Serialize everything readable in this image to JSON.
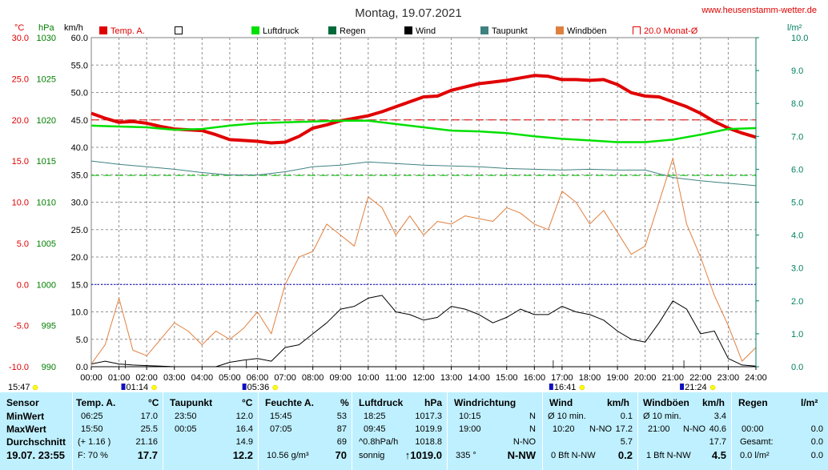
{
  "header": {
    "title": "Montag, 19.07.2021",
    "url": "www.heusenstamm-wetter.de",
    "unit_celsius": "°C",
    "unit_hpa": "hPa",
    "unit_kmh": "km/h",
    "unit_lm2": "l/m²"
  },
  "legend": [
    {
      "label": "Temp. A.",
      "color": "#e00000",
      "style": "filled"
    },
    {
      "label": "",
      "color": "#000000",
      "style": "outline"
    },
    {
      "label": "Luftdruck",
      "color": "#00e000",
      "style": "filled"
    },
    {
      "label": "Regen",
      "color": "#006a3a",
      "style": "filled"
    },
    {
      "label": "Wind",
      "color": "#000000",
      "style": "filled"
    },
    {
      "label": "Taupunkt",
      "color": "#3f8080",
      "style": "filled"
    },
    {
      "label": "Windböen",
      "color": "#e08040",
      "style": "filled"
    },
    {
      "label": "20.0 Monat-Ø",
      "color": "#e00000",
      "style": "bracket"
    }
  ],
  "time_markers": [
    {
      "label": "15:47",
      "hour": -1
    },
    {
      "label": "01:14",
      "hour": 1.23
    },
    {
      "label": "05:36",
      "hour": 5.6
    },
    {
      "label": "16:41",
      "hour": 16.68
    },
    {
      "label": "21:24",
      "hour": 21.4
    }
  ],
  "chart_data": {
    "type": "line",
    "title": "Montag, 19.07.2021",
    "x_ticks": [
      "00:00",
      "01:00",
      "02:00",
      "03:00",
      "04:00",
      "05:00",
      "06:00",
      "07:00",
      "08:00",
      "09:00",
      "10:00",
      "11:00",
      "12:00",
      "13:00",
      "14:00",
      "15:00",
      "16:00",
      "17:00",
      "18:00",
      "19:00",
      "20:00",
      "21:00",
      "22:00",
      "23:00",
      "24:00"
    ],
    "axes": {
      "celsius": {
        "min": -10,
        "max": 30,
        "ticks": [
          "-10.0",
          "-5.0",
          "0.0",
          "5.0",
          "10.0",
          "15.0",
          "20.0",
          "25.0",
          "30.0"
        ]
      },
      "hpa": {
        "min": 990,
        "max": 1030,
        "ticks": [
          "990",
          "995",
          "1000",
          "1005",
          "1010",
          "1015",
          "1020",
          "1025",
          "1030"
        ]
      },
      "kmh": {
        "min": 0,
        "max": 60,
        "ticks": [
          "0.0",
          "5.0",
          "10.0",
          "15.0",
          "20.0",
          "25.0",
          "30.0",
          "35.0",
          "40.0",
          "45.0",
          "50.0",
          "55.0",
          "60.0"
        ]
      },
      "lm2": {
        "min": 0,
        "max": 10,
        "ticks": [
          "0.0",
          "1.0",
          "2.0",
          "3.0",
          "4.0",
          "5.0",
          "6.0",
          "7.0",
          "8.0",
          "9.0",
          "10.0"
        ]
      }
    },
    "grid": true,
    "reference_lines": [
      {
        "name": "20.0 Monat-Ø",
        "axis": "celsius",
        "value": 20.0,
        "color": "#e00000"
      },
      {
        "axis": "celsius",
        "value": 0.0,
        "color": "#0000e0"
      },
      {
        "axis": "hpa",
        "value": 1013.25,
        "color": "#00c000"
      }
    ],
    "series": [
      {
        "name": "Temp. A.",
        "axis": "celsius",
        "color": "#e00000",
        "x": [
          0,
          0.5,
          1,
          1.5,
          2,
          2.5,
          3,
          3.5,
          4,
          4.5,
          5,
          5.5,
          6,
          6.5,
          7,
          7.5,
          8,
          8.5,
          9,
          9.5,
          10,
          10.5,
          11,
          11.5,
          12,
          12.5,
          13,
          13.5,
          14,
          14.5,
          15,
          15.5,
          16,
          16.5,
          17,
          17.5,
          18,
          18.5,
          19,
          19.5,
          20,
          20.5,
          21,
          21.5,
          22,
          22.5,
          23,
          23.5,
          24
        ],
        "y": [
          20.8,
          20.2,
          19.7,
          19.8,
          19.6,
          19.2,
          18.9,
          18.8,
          18.7,
          18.2,
          17.6,
          17.5,
          17.4,
          17.2,
          17.3,
          18.0,
          19.0,
          19.4,
          19.9,
          20.2,
          20.5,
          21.0,
          21.6,
          22.2,
          22.8,
          22.9,
          23.6,
          24.0,
          24.4,
          24.6,
          24.8,
          25.1,
          25.4,
          25.3,
          24.9,
          24.9,
          24.8,
          24.9,
          24.3,
          23.3,
          22.9,
          22.8,
          22.2,
          21.6,
          20.8,
          19.8,
          19.0,
          18.4,
          17.9
        ]
      },
      {
        "name": "Luftdruck",
        "axis": "hpa",
        "color": "#00e000",
        "x": [
          0,
          1,
          2,
          3,
          4,
          5,
          6,
          7,
          8,
          9,
          10,
          11,
          12,
          13,
          14,
          15,
          16,
          17,
          18,
          19,
          20,
          21,
          22,
          23,
          24
        ],
        "y": [
          1019.3,
          1019.2,
          1019.1,
          1018.8,
          1018.9,
          1019.3,
          1019.6,
          1019.7,
          1019.8,
          1019.9,
          1019.9,
          1019.5,
          1019.1,
          1018.7,
          1018.6,
          1018.4,
          1018.0,
          1017.7,
          1017.5,
          1017.3,
          1017.3,
          1017.6,
          1018.2,
          1018.9,
          1019.0
        ]
      },
      {
        "name": "Taupunkt",
        "axis": "celsius",
        "color": "#3f8080",
        "x": [
          0,
          1,
          2,
          3,
          4,
          5,
          6,
          7,
          8,
          9,
          10,
          11,
          12,
          13,
          14,
          15,
          16,
          17,
          18,
          19,
          20,
          21,
          22,
          23,
          24
        ],
        "y": [
          15.0,
          14.6,
          14.3,
          14.0,
          13.6,
          13.3,
          13.3,
          13.7,
          14.3,
          14.5,
          14.9,
          14.7,
          14.5,
          14.4,
          14.3,
          14.1,
          14.0,
          13.9,
          14.0,
          13.9,
          13.9,
          13.0,
          12.6,
          12.3,
          12.0
        ]
      },
      {
        "name": "Wind",
        "axis": "kmh",
        "color": "#000000",
        "x": [
          0,
          0.5,
          1,
          1.5,
          2,
          2.5,
          3,
          3.5,
          4,
          4.5,
          5,
          5.5,
          6,
          6.5,
          7,
          7.5,
          8,
          8.5,
          9,
          9.5,
          10,
          10.5,
          11,
          11.5,
          12,
          12.5,
          13,
          13.5,
          14,
          14.5,
          15,
          15.5,
          16,
          16.5,
          17,
          17.5,
          18,
          18.5,
          19,
          19.5,
          20,
          20.5,
          21,
          21.5,
          22,
          22.5,
          23,
          23.5,
          24
        ],
        "y": [
          0.5,
          1.0,
          0.5,
          0.3,
          0.2,
          0.1,
          0.0,
          0.0,
          0.0,
          0.0,
          0.8,
          1.2,
          1.5,
          1.0,
          3.5,
          4.0,
          6.0,
          8.0,
          10.5,
          11.0,
          12.5,
          13.0,
          10.0,
          9.5,
          8.5,
          9.0,
          11.0,
          10.5,
          9.5,
          8.0,
          9.0,
          10.5,
          9.5,
          9.5,
          11.0,
          10.0,
          9.5,
          8.5,
          6.5,
          5.0,
          4.5,
          8.0,
          12.0,
          10.5,
          6.0,
          6.5,
          1.5,
          0.3,
          0.1
        ]
      },
      {
        "name": "Windböen",
        "axis": "kmh",
        "color": "#e08040",
        "x": [
          0,
          0.5,
          1,
          1.5,
          2,
          2.5,
          3,
          3.5,
          4,
          4.5,
          5,
          5.5,
          6,
          6.5,
          7,
          7.5,
          8,
          8.5,
          9,
          9.5,
          10,
          10.5,
          11,
          11.5,
          12,
          12.5,
          13,
          13.5,
          14,
          14.5,
          15,
          15.5,
          16,
          16.5,
          17,
          17.5,
          18,
          18.5,
          19,
          19.5,
          20,
          20.5,
          21,
          21.5,
          22,
          22.5,
          23,
          23.5,
          24
        ],
        "y": [
          0.5,
          4.0,
          12.5,
          3.0,
          2.0,
          5.0,
          8.0,
          6.5,
          4.0,
          6.5,
          5.0,
          7.0,
          10.0,
          6.0,
          15.0,
          20.0,
          21.0,
          26.0,
          24.0,
          22.0,
          31.0,
          29.0,
          24.0,
          27.5,
          24.0,
          26.5,
          26.0,
          27.5,
          27.0,
          26.5,
          29.0,
          28.0,
          26.0,
          25.0,
          32.0,
          30.0,
          26.0,
          28.5,
          24.5,
          20.5,
          22.0,
          30.0,
          38.0,
          26.0,
          20.0,
          13.0,
          7.5,
          1.0,
          3.5
        ]
      }
    ]
  },
  "panel": {
    "sensor": {
      "header": "Sensor",
      "rows": [
        "MinWert",
        "MaxWert",
        "Durchschnitt"
      ],
      "footer": "19.07. 23:55"
    },
    "temp": {
      "header": "Temp. A.",
      "unit": "°C",
      "min_time": "06:25",
      "min_val": "17.0",
      "max_time": "15:50",
      "max_val": "25.5",
      "avg_note": "(+ 1.16 )",
      "avg_val": "21.16",
      "footer_note": "F: 70 %",
      "current": "17.7"
    },
    "taupunkt": {
      "header": "Taupunkt",
      "unit": "°C",
      "min_time": "23:50",
      "min_val": "12.0",
      "max_time": "00:05",
      "max_val": "16.4",
      "avg_val": "14.9",
      "current": "12.2"
    },
    "feuchte": {
      "header": "Feuchte A.",
      "unit": "%",
      "min_time": "15:45",
      "min_val": "53",
      "max_time": "07:05",
      "max_val": "87",
      "avg_val": "69",
      "footer_note": "10.56 g/m³",
      "current": "70"
    },
    "luftdruck": {
      "header": "Luftdruck",
      "unit": "hPa",
      "min_time": "18:25",
      "min_val": "1017.3",
      "max_time": "09:45",
      "max_val": "1019.9",
      "avg_note": "^0.8hPa/h",
      "avg_val": "1018.8",
      "footer_note": "sonnig",
      "current": "↑1019.0"
    },
    "windrichtung": {
      "header": "Windrichtung",
      "min_time": "10:15",
      "min_val": "N",
      "max_time": "19:00",
      "max_val": "N",
      "avg_val": "N-NO",
      "footer_note": "335 °",
      "current": "N-NW"
    },
    "wind": {
      "header": "Wind",
      "unit": "km/h",
      "row1_label": "Ø 10 min.",
      "row1_val": "0.1",
      "row2_time": "10:20",
      "row2_dir": "N-NO",
      "row2_val": "17.2",
      "avg_val": "5.7",
      "footer_note": "0 Bft N-NW",
      "current": "0.2"
    },
    "windboeen": {
      "header": "Windböen",
      "unit": "km/h",
      "row1_label": "Ø 10 min.",
      "row1_val": "3.4",
      "row2_time": "21:00",
      "row2_dir": "N-NO",
      "row2_val": "40.6",
      "avg_val": "17.7",
      "footer_note": "1 Bft N-NW",
      "current": "4.5"
    },
    "regen": {
      "header": "Regen",
      "unit": "l/m²",
      "row2_time": "00:00",
      "row2_val": "0.0",
      "avg_label": "Gesamt:",
      "avg_val": "0.0",
      "current": "0.0 l/m²",
      "current_right": "0.0"
    }
  }
}
